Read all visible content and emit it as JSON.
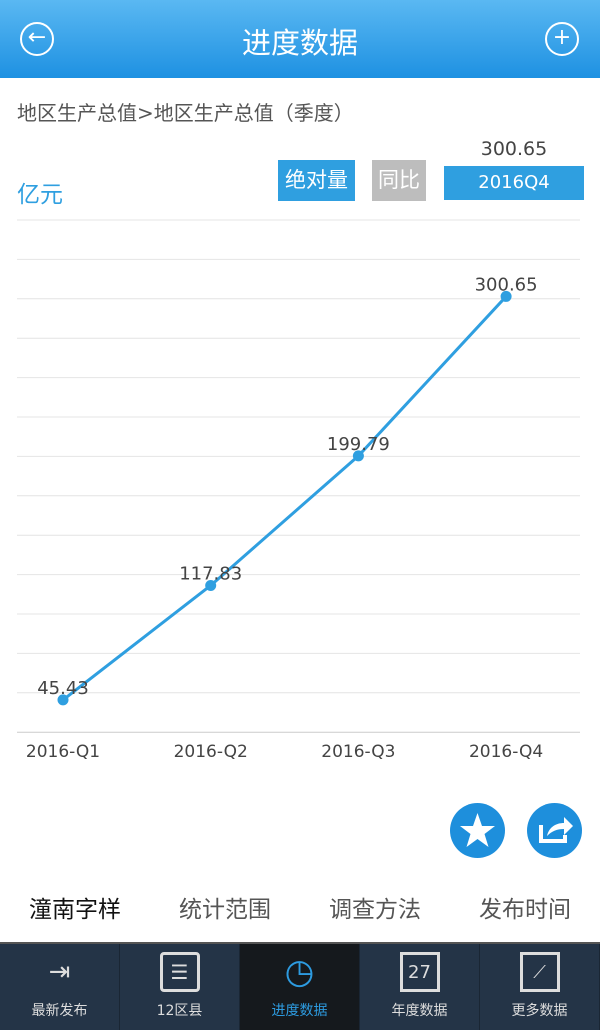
{
  "header": {
    "title": "进度数据",
    "back_icon": "arrow-left-circle-icon",
    "add_icon": "plus-circle-icon"
  },
  "breadcrumb": "地区生产总值>地区生产总值（季度）",
  "unit": "亿元",
  "controls": {
    "absolute_label": "绝对量",
    "yoy_label": "同比",
    "selected_value": "300.65",
    "selected_period": "2016Q4"
  },
  "colors": {
    "accent": "#2f9fe0",
    "header": "#1e91e2",
    "inactive_button": "#bdbdbd",
    "nav_bg": "#243447"
  },
  "chart_data": {
    "type": "line",
    "categories": [
      "2016-Q1",
      "2016-Q2",
      "2016-Q3",
      "2016-Q4"
    ],
    "values": [
      45.43,
      117.83,
      199.79,
      300.65
    ],
    "data_labels": [
      "45.43",
      "117.83",
      "199.79",
      "300.65"
    ],
    "ylabel": "亿元",
    "ylim": [
      24.5,
      349
    ],
    "grid": true
  },
  "actions": {
    "favorite_icon": "star-icon",
    "share_icon": "share-icon"
  },
  "info_tabs": [
    "潼南字样",
    "统计范围",
    "调查方法",
    "发布时间"
  ],
  "nav": [
    {
      "label": "最新发布",
      "icon": "export-icon"
    },
    {
      "label": "12区县",
      "icon": "sliders-icon"
    },
    {
      "label": "进度数据",
      "icon": "history-icon",
      "active": true
    },
    {
      "label": "年度数据",
      "icon": "calendar-icon",
      "day": "27"
    },
    {
      "label": "更多数据",
      "icon": "chart-icon"
    }
  ]
}
